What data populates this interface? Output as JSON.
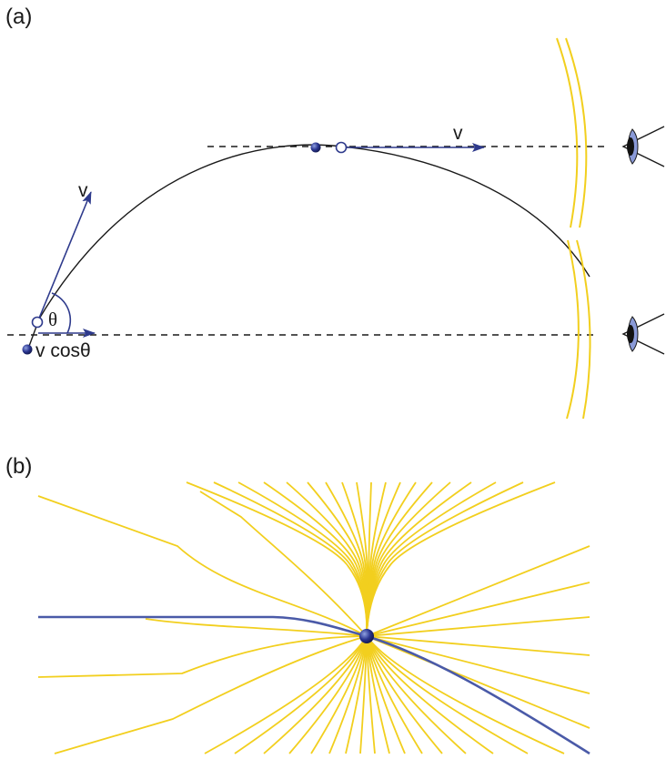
{
  "panel_a": {
    "label": "(a)",
    "velocity_label_launch": "v",
    "angle_label": "θ",
    "component_label": "v cosθ",
    "velocity_label_top": "v",
    "eye_icons": [
      "eye-icon",
      "eye-icon"
    ]
  },
  "panel_b": {
    "label": "(b)"
  },
  "colors": {
    "vector": "#2e3a8c",
    "charge": "#1f2a78",
    "wavefront": "#f2cf1e",
    "trajectory": "#1a1a1a",
    "worldline": "#4a5aa8"
  }
}
